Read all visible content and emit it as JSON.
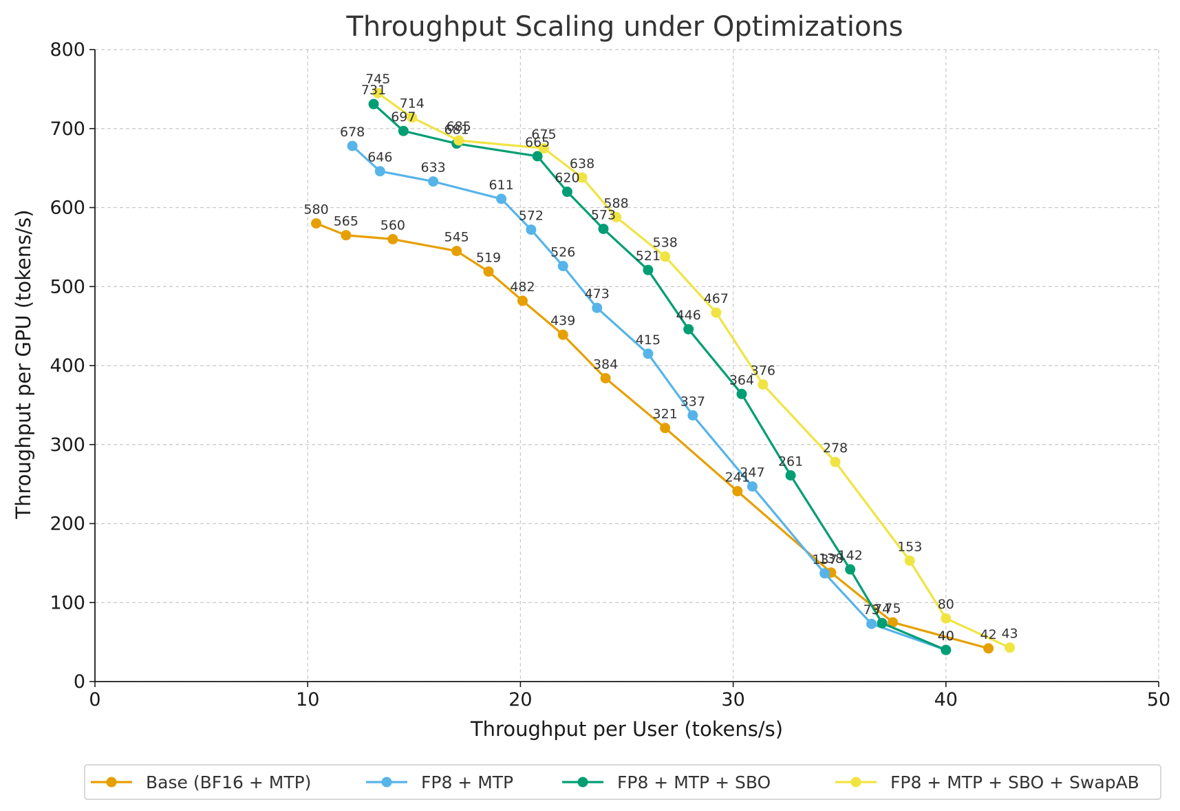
{
  "chart_data": {
    "type": "line",
    "title": "Throughput Scaling under Optimizations",
    "xlabel": "Throughput per User (tokens/s)",
    "ylabel": "Throughput per GPU (tokens/s)",
    "xlim": [
      0,
      50
    ],
    "ylim": [
      0,
      800
    ],
    "xticks": [
      0,
      10,
      20,
      30,
      40,
      50
    ],
    "yticks": [
      0,
      100,
      200,
      300,
      400,
      500,
      600,
      700,
      800
    ],
    "grid": true,
    "legend_position": "bottom",
    "series": [
      {
        "name": "Base (BF16 + MTP)",
        "color": "#E69F00",
        "points": [
          {
            "x": 10.4,
            "y": 580
          },
          {
            "x": 11.8,
            "y": 565
          },
          {
            "x": 14.0,
            "y": 560
          },
          {
            "x": 17.0,
            "y": 545
          },
          {
            "x": 18.5,
            "y": 519
          },
          {
            "x": 20.1,
            "y": 482
          },
          {
            "x": 22.0,
            "y": 439
          },
          {
            "x": 24.0,
            "y": 384
          },
          {
            "x": 26.8,
            "y": 321
          },
          {
            "x": 30.2,
            "y": 241
          },
          {
            "x": 34.6,
            "y": 138
          },
          {
            "x": 37.5,
            "y": 75
          },
          {
            "x": 42.0,
            "y": 42
          }
        ]
      },
      {
        "name": "FP8 + MTP",
        "color": "#56B4E9",
        "points": [
          {
            "x": 12.1,
            "y": 678
          },
          {
            "x": 13.4,
            "y": 646
          },
          {
            "x": 15.9,
            "y": 633
          },
          {
            "x": 19.1,
            "y": 611
          },
          {
            "x": 20.5,
            "y": 572
          },
          {
            "x": 22.0,
            "y": 526
          },
          {
            "x": 23.6,
            "y": 473
          },
          {
            "x": 26.0,
            "y": 415
          },
          {
            "x": 28.1,
            "y": 337
          },
          {
            "x": 30.9,
            "y": 247
          },
          {
            "x": 34.3,
            "y": 137
          },
          {
            "x": 36.5,
            "y": 73
          },
          {
            "x": 40.0,
            "y": 40
          }
        ]
      },
      {
        "name": "FP8 + MTP + SBO",
        "color": "#009E73",
        "points": [
          {
            "x": 13.1,
            "y": 731
          },
          {
            "x": 14.5,
            "y": 697
          },
          {
            "x": 17.0,
            "y": 681
          },
          {
            "x": 20.8,
            "y": 665
          },
          {
            "x": 22.2,
            "y": 620
          },
          {
            "x": 23.9,
            "y": 573
          },
          {
            "x": 26.0,
            "y": 521
          },
          {
            "x": 27.9,
            "y": 446
          },
          {
            "x": 30.4,
            "y": 364
          },
          {
            "x": 32.7,
            "y": 261
          },
          {
            "x": 35.5,
            "y": 142
          },
          {
            "x": 37.0,
            "y": 74
          },
          {
            "x": 40.0,
            "y": 40
          }
        ]
      },
      {
        "name": "FP8 + MTP + SBO + SwapAB",
        "color": "#F0E442",
        "points": [
          {
            "x": 13.3,
            "y": 745
          },
          {
            "x": 14.9,
            "y": 714
          },
          {
            "x": 17.1,
            "y": 685
          },
          {
            "x": 21.1,
            "y": 675
          },
          {
            "x": 22.9,
            "y": 638
          },
          {
            "x": 24.5,
            "y": 588
          },
          {
            "x": 26.8,
            "y": 538
          },
          {
            "x": 29.2,
            "y": 467
          },
          {
            "x": 31.4,
            "y": 376
          },
          {
            "x": 34.8,
            "y": 278
          },
          {
            "x": 38.3,
            "y": 153
          },
          {
            "x": 40.0,
            "y": 80
          },
          {
            "x": 43.0,
            "y": 43
          }
        ]
      }
    ]
  }
}
